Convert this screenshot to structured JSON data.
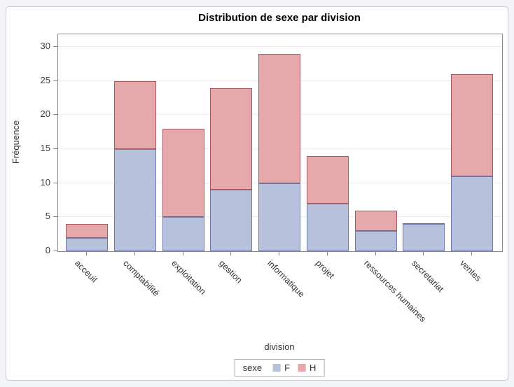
{
  "chart_data": {
    "type": "bar",
    "stacked": true,
    "title": "Distribution de sexe par division",
    "xlabel": "division",
    "ylabel": "Fréquence",
    "ylim": [
      0,
      30
    ],
    "yticks": [
      0,
      5,
      10,
      15,
      20,
      25,
      30
    ],
    "grid": true,
    "categories": [
      "acceuil",
      "comptabilité",
      "exploitation",
      "gestion",
      "informatique",
      "projet",
      "ressources humaines",
      "secretariat",
      "ventes"
    ],
    "series": [
      {
        "name": "F",
        "values": [
          2,
          15,
          5,
          9,
          10,
          7,
          3,
          4,
          11
        ],
        "fill": "#b8c1db",
        "border": "#6f7ca7"
      },
      {
        "name": "H",
        "values": [
          2,
          10,
          13,
          15,
          19,
          7,
          3,
          0,
          15
        ],
        "fill": "#e5a9ac",
        "border": "#a65a60"
      }
    ],
    "totals": [
      4,
      25,
      18,
      24,
      29,
      14,
      6,
      4,
      26
    ],
    "legend": {
      "title": "sexe",
      "position": "bottom"
    }
  },
  "colors": {
    "page_background": "#f2f3f6",
    "figure_background": "#ffffff",
    "figure_border": "#c9ccd3",
    "wall_border": "#85878e",
    "gridline": "#e9eaec",
    "tick_text": "#404040"
  }
}
